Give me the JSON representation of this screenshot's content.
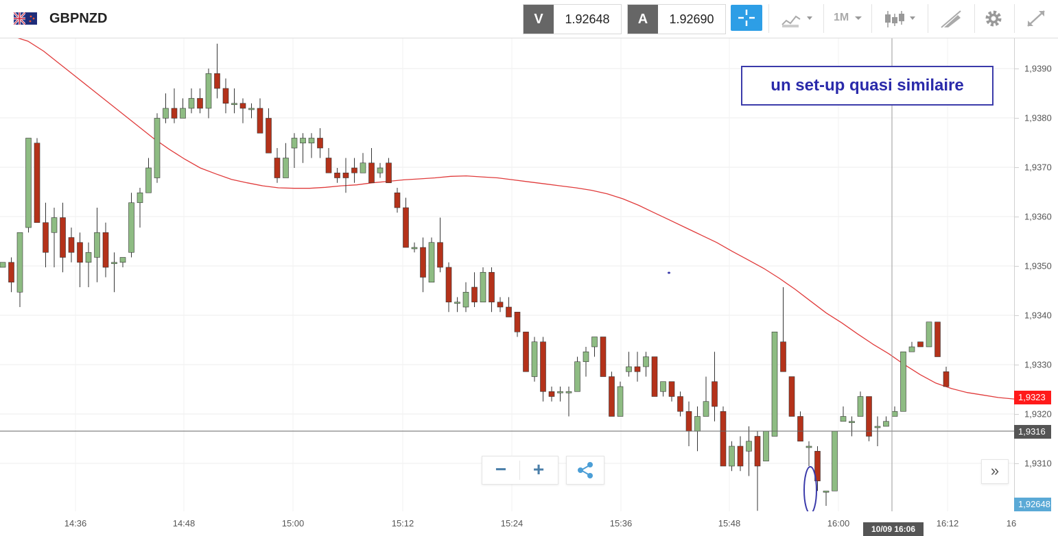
{
  "header": {
    "symbol": "GBPNZD",
    "sell_label": "V",
    "sell_price": "1.92648",
    "buy_label": "A",
    "buy_price": "1.92690",
    "timeframe": "1M",
    "icons": [
      "flag-gb-nz-icon",
      "crosshair-icon",
      "chart-type-icon",
      "timeframe-chevron-icon",
      "candlestick-icon",
      "draw-tools-icon",
      "settings-gear-icon",
      "fullscreen-icon"
    ]
  },
  "annotation": {
    "text": "un set-up quasi similaire",
    "color": "#2a2aaa"
  },
  "price_axis": {
    "ticks": [
      "1,9390",
      "1,9380",
      "1,9370",
      "1,9360",
      "1,9350",
      "1,9340",
      "1,9330",
      "1,9320",
      "1,9310"
    ],
    "ma_badge": "1,9323",
    "crosshair_badge": "1,9316",
    "last_price_badge": "1,92648"
  },
  "time_axis": {
    "ticks": [
      "14:36",
      "14:48",
      "15:00",
      "15:12",
      "15:24",
      "15:36",
      "15:48",
      "16:00",
      "16:12",
      "16"
    ],
    "cursor_label": "10/09 16:06"
  },
  "controls": {
    "zoom_out": "−",
    "zoom_in": "+",
    "forward": "»"
  },
  "colors": {
    "up": "#8ebc83",
    "down": "#b4321a",
    "ma": "#e03a3a",
    "accent": "#2d9ee6",
    "annotation": "#3a3aaa"
  },
  "chart_data": {
    "type": "candlestick",
    "x_unit": "time",
    "ylim": [
      1.93,
      1.9397
    ],
    "moving_average": [
      1.93965,
      1.93955,
      1.93935,
      1.9391,
      1.93885,
      1.9386,
      1.93835,
      1.9381,
      1.93785,
      1.9376,
      1.93738,
      1.93718,
      1.937,
      1.93688,
      1.93677,
      1.9367,
      1.93664,
      1.9366,
      1.93659,
      1.93659,
      1.93661,
      1.93664,
      1.93666,
      1.9367,
      1.93673,
      1.93676,
      1.93678,
      1.9368,
      1.93683,
      1.93684,
      1.93682,
      1.9368,
      1.93676,
      1.93672,
      1.93668,
      1.93664,
      1.9366,
      1.93655,
      1.93648,
      1.93638,
      1.93625,
      1.9361,
      1.93595,
      1.9358,
      1.93565,
      1.9355,
      1.93532,
      1.93515,
      1.93498,
      1.93478,
      1.93456,
      1.93432,
      1.93408,
      1.93388,
      1.93366,
      1.93345,
      1.93326,
      1.93304,
      1.93284,
      1.93267,
      1.93256,
      1.93248,
      1.93243,
      1.93238,
      1.93235
    ],
    "candles": [
      [
        1.935,
        1.9351,
        1.935,
        1.9351
      ],
      [
        1.9351,
        1.9352,
        1.9345,
        1.9347
      ],
      [
        1.9345,
        1.9357,
        1.9342,
        1.9357
      ],
      [
        1.9358,
        1.9376,
        1.9357,
        1.9376
      ],
      [
        1.9375,
        1.9376,
        1.9359,
        1.9359
      ],
      [
        1.9359,
        1.9363,
        1.935,
        1.9353
      ],
      [
        1.9357,
        1.9362,
        1.935,
        1.936
      ],
      [
        1.936,
        1.9363,
        1.9349,
        1.9352
      ],
      [
        1.9356,
        1.9358,
        1.9351,
        1.9353
      ],
      [
        1.9355,
        1.9357,
        1.9346,
        1.9351
      ],
      [
        1.9351,
        1.9355,
        1.9346,
        1.9353
      ],
      [
        1.9352,
        1.9362,
        1.9347,
        1.9357
      ],
      [
        1.9357,
        1.9359,
        1.9348,
        1.935
      ],
      [
        1.9351,
        1.9353,
        1.9345,
        1.9351
      ],
      [
        1.9351,
        1.9352,
        1.935,
        1.9352
      ],
      [
        1.9353,
        1.9365,
        1.9352,
        1.9363
      ],
      [
        1.9363,
        1.9366,
        1.9358,
        1.9365
      ],
      [
        1.9365,
        1.9372,
        1.9365,
        1.937
      ],
      [
        1.9368,
        1.9381,
        1.9367,
        1.938
      ],
      [
        1.938,
        1.9385,
        1.9379,
        1.9382
      ],
      [
        1.9382,
        1.9386,
        1.9379,
        1.938
      ],
      [
        1.938,
        1.9384,
        1.938,
        1.9382
      ],
      [
        1.9382,
        1.9386,
        1.9381,
        1.9384
      ],
      [
        1.9384,
        1.9386,
        1.9381,
        1.9382
      ],
      [
        1.9382,
        1.939,
        1.938,
        1.9389
      ],
      [
        1.9389,
        1.9395,
        1.9384,
        1.9386
      ],
      [
        1.9386,
        1.9388,
        1.9381,
        1.9383
      ],
      [
        1.9383,
        1.9386,
        1.9381,
        1.9383
      ],
      [
        1.9383,
        1.9384,
        1.9379,
        1.9382
      ],
      [
        1.9382,
        1.9383,
        1.938,
        1.9382
      ],
      [
        1.9382,
        1.9384,
        1.9377,
        1.9377
      ],
      [
        1.938,
        1.9382,
        1.9373,
        1.9373
      ],
      [
        1.9372,
        1.9374,
        1.9367,
        1.9368
      ],
      [
        1.9368,
        1.9375,
        1.9368,
        1.9372
      ],
      [
        1.9374,
        1.9377,
        1.937,
        1.9376
      ],
      [
        1.9375,
        1.9377,
        1.9371,
        1.9376
      ],
      [
        1.9375,
        1.9377,
        1.9372,
        1.9376
      ],
      [
        1.9376,
        1.9378,
        1.9372,
        1.9374
      ],
      [
        1.9372,
        1.9374,
        1.9369,
        1.9369
      ],
      [
        1.9369,
        1.937,
        1.9367,
        1.9368
      ],
      [
        1.9369,
        1.9372,
        1.9365,
        1.9368
      ],
      [
        1.937,
        1.9372,
        1.9367,
        1.9369
      ],
      [
        1.9369,
        1.9373,
        1.9369,
        1.9371
      ],
      [
        1.9371,
        1.9374,
        1.9367,
        1.9367
      ],
      [
        1.9369,
        1.9371,
        1.9368,
        1.937
      ],
      [
        1.9371,
        1.9372,
        1.9367,
        1.9367
      ],
      [
        1.9365,
        1.9366,
        1.9361,
        1.9362
      ],
      [
        1.9362,
        1.9364,
        1.9354,
        1.9354
      ],
      [
        1.9354,
        1.9355,
        1.9353,
        1.9354
      ],
      [
        1.9354,
        1.9356,
        1.9345,
        1.9348
      ],
      [
        1.9347,
        1.9356,
        1.9347,
        1.9355
      ],
      [
        1.9355,
        1.936,
        1.9349,
        1.935
      ],
      [
        1.935,
        1.9351,
        1.9341,
        1.9343
      ],
      [
        1.9343,
        1.9344,
        1.9341,
        1.9343
      ],
      [
        1.9342,
        1.9347,
        1.9341,
        1.9345
      ],
      [
        1.9346,
        1.9349,
        1.9342,
        1.9343
      ],
      [
        1.9343,
        1.935,
        1.9343,
        1.9349
      ],
      [
        1.9349,
        1.935,
        1.9341,
        1.9343
      ],
      [
        1.9343,
        1.9344,
        1.9341,
        1.9342
      ],
      [
        1.9342,
        1.9344,
        1.934,
        1.934
      ],
      [
        1.9341,
        1.9341,
        1.9336,
        1.9337
      ],
      [
        1.9337,
        1.9337,
        1.9329,
        1.9329
      ],
      [
        1.9328,
        1.9336,
        1.9327,
        1.9335
      ],
      [
        1.9335,
        1.9336,
        1.9323,
        1.9325
      ],
      [
        1.9325,
        1.9326,
        1.9323,
        1.9324
      ],
      [
        1.9325,
        1.9326,
        1.9323,
        1.9325
      ],
      [
        1.9325,
        1.9326,
        1.932,
        1.9325
      ],
      [
        1.9325,
        1.9332,
        1.9325,
        1.9331
      ],
      [
        1.9331,
        1.9334,
        1.9328,
        1.9333
      ],
      [
        1.9334,
        1.9336,
        1.9332,
        1.9336
      ],
      [
        1.9336,
        1.9336,
        1.9328,
        1.9328
      ],
      [
        1.9328,
        1.9329,
        1.932,
        1.932
      ],
      [
        1.932,
        1.9327,
        1.932,
        1.9326
      ],
      [
        1.9329,
        1.9333,
        1.9328,
        1.933
      ],
      [
        1.933,
        1.9333,
        1.9327,
        1.9329
      ],
      [
        1.933,
        1.9333,
        1.9328,
        1.9332
      ],
      [
        1.9332,
        1.9332,
        1.9324,
        1.9324
      ],
      [
        1.9325,
        1.9327,
        1.9324,
        1.9327
      ],
      [
        1.9327,
        1.9327,
        1.9323,
        1.9324
      ],
      [
        1.9324,
        1.9325,
        1.932,
        1.9321
      ],
      [
        1.9321,
        1.9323,
        1.9314,
        1.9317
      ],
      [
        1.9317,
        1.9322,
        1.9313,
        1.932
      ],
      [
        1.932,
        1.9328,
        1.932,
        1.9323
      ],
      [
        1.9327,
        1.9333,
        1.9319,
        1.9322
      ],
      [
        1.9321,
        1.9322,
        1.931,
        1.931
      ],
      [
        1.931,
        1.9315,
        1.9309,
        1.9314
      ],
      [
        1.9314,
        1.9316,
        1.9309,
        1.931
      ],
      [
        1.9313,
        1.9318,
        1.9308,
        1.9315
      ],
      [
        1.9316,
        1.9317,
        1.9301,
        1.931
      ],
      [
        1.9311,
        1.9317,
        1.9311,
        1.9317
      ],
      [
        1.9316,
        1.9337,
        1.9316,
        1.9337
      ],
      [
        1.9335,
        1.9346,
        1.9329,
        1.9329
      ],
      [
        1.9328,
        1.9328,
        1.932,
        1.932
      ],
      [
        1.932,
        1.9321,
        1.9315,
        1.9315
      ],
      [
        1.9314,
        1.9315,
        1.931,
        1.9314
      ],
      [
        1.9313,
        1.9314,
        1.9305,
        1.9307
      ],
      [
        1.9305,
        1.9305,
        1.9302,
        1.9305
      ],
      [
        1.9305,
        1.9317,
        1.9305,
        1.9317
      ],
      [
        1.9319,
        1.9322,
        1.9319,
        1.932
      ],
      [
        1.9319,
        1.932,
        1.9316,
        1.9319
      ],
      [
        1.932,
        1.9325,
        1.932,
        1.9324
      ],
      [
        1.9324,
        1.9324,
        1.9315,
        1.9316
      ],
      [
        1.9318,
        1.932,
        1.9314,
        1.9318
      ],
      [
        1.9318,
        1.932,
        1.9318,
        1.9319
      ],
      [
        1.932,
        1.9322,
        1.932,
        1.9321
      ],
      [
        1.9321,
        1.9333,
        1.9321,
        1.9333
      ],
      [
        1.9333,
        1.9335,
        1.9333,
        1.9334
      ],
      [
        1.9335,
        1.9335,
        1.9334,
        1.9334
      ],
      [
        1.9334,
        1.9339,
        1.9334,
        1.9339
      ],
      [
        1.9339,
        1.9339,
        1.9332,
        1.9332
      ],
      [
        1.9329,
        1.933,
        1.9326,
        1.9326
      ]
    ]
  }
}
